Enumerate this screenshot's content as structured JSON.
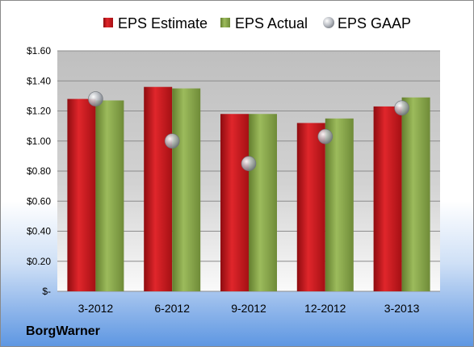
{
  "company": "BorgWarner",
  "chart_data": {
    "type": "bar",
    "categories": [
      "3-2012",
      "6-2012",
      "9-2012",
      "12-2012",
      "3-2013"
    ],
    "series": [
      {
        "name": "EPS Estimate",
        "kind": "bar",
        "color": "#c8161b",
        "values": [
          1.28,
          1.36,
          1.18,
          1.12,
          1.23
        ]
      },
      {
        "name": "EPS Actual",
        "kind": "bar",
        "color": "#8aa84a",
        "values": [
          1.27,
          1.35,
          1.18,
          1.15,
          1.29
        ]
      },
      {
        "name": "EPS GAAP",
        "kind": "scatter",
        "color": "#b8bcc4",
        "values": [
          1.28,
          1.0,
          0.85,
          1.03,
          1.22
        ]
      }
    ],
    "y_ticks": [
      {
        "value": 1.6,
        "label": "$1.60"
      },
      {
        "value": 1.4,
        "label": "$1.40"
      },
      {
        "value": 1.2,
        "label": "$1.20"
      },
      {
        "value": 1.0,
        "label": "$1.00"
      },
      {
        "value": 0.8,
        "label": "$0.80"
      },
      {
        "value": 0.6,
        "label": "$0.60"
      },
      {
        "value": 0.4,
        "label": "$0.40"
      },
      {
        "value": 0.2,
        "label": "$0.20"
      },
      {
        "value": 0.0,
        "label": "$-"
      }
    ],
    "ylim": [
      0,
      1.6
    ],
    "grid": true,
    "legend_position": "top"
  }
}
